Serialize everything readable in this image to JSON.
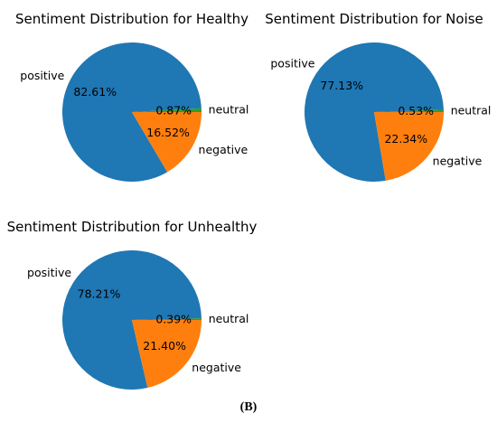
{
  "figure": {
    "caption": "(B)"
  },
  "chart_data": [
    {
      "type": "pie",
      "title": "Sentiment Distribution for Healthy",
      "labels": [
        "positive",
        "negative",
        "neutral"
      ],
      "values": [
        82.61,
        16.52,
        0.87
      ],
      "autopct": [
        "82.61%",
        "16.52%",
        "0.87%"
      ],
      "colors": [
        "#1f77b4",
        "#ff7f0e",
        "#2ca02c"
      ]
    },
    {
      "type": "pie",
      "title": "Sentiment Distribution for Noise",
      "labels": [
        "positive",
        "negative",
        "neutral"
      ],
      "values": [
        77.13,
        22.34,
        0.53
      ],
      "autopct": [
        "77.13%",
        "22.34%",
        "0.53%"
      ],
      "colors": [
        "#1f77b4",
        "#ff7f0e",
        "#2ca02c"
      ]
    },
    {
      "type": "pie",
      "title": "Sentiment Distribution for Unhealthy",
      "labels": [
        "positive",
        "negative",
        "neutral"
      ],
      "values": [
        78.21,
        21.4,
        0.39
      ],
      "autopct": [
        "78.21%",
        "21.40%",
        "0.39%"
      ],
      "colors": [
        "#1f77b4",
        "#ff7f0e",
        "#2ca02c"
      ]
    }
  ]
}
